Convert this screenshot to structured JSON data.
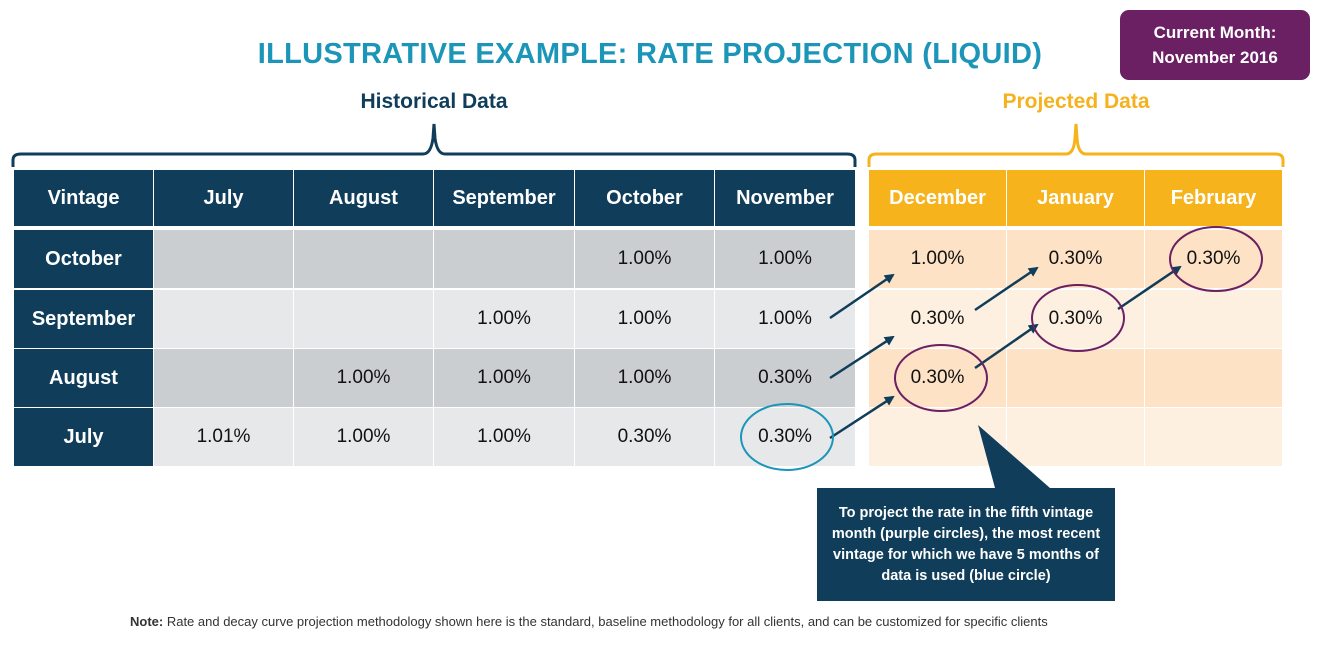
{
  "title": "ILLUSTRATIVE EXAMPLE: RATE PROJECTION (LIQUID)",
  "badge": {
    "line1": "Current Month:",
    "line2": "November 2016"
  },
  "historical_label": "Historical Data",
  "projected_label": "Projected Data",
  "table": {
    "corner": "Vintage",
    "historical_months": [
      "July",
      "August",
      "September",
      "October",
      "November"
    ],
    "projected_months": [
      "December",
      "January",
      "February"
    ],
    "rows": [
      {
        "vintage": "October",
        "historical": [
          "",
          "",
          "",
          "1.00%",
          "1.00%"
        ],
        "projected": [
          "1.00%",
          "0.30%",
          "0.30%"
        ]
      },
      {
        "vintage": "September",
        "historical": [
          "",
          "",
          "1.00%",
          "1.00%",
          "1.00%"
        ],
        "projected": [
          "0.30%",
          "0.30%",
          ""
        ]
      },
      {
        "vintage": "August",
        "historical": [
          "",
          "1.00%",
          "1.00%",
          "1.00%",
          "0.30%"
        ],
        "projected": [
          "0.30%",
          "",
          ""
        ]
      },
      {
        "vintage": "July",
        "historical": [
          "1.01%",
          "1.00%",
          "1.00%",
          "0.30%",
          "0.30%"
        ],
        "projected": [
          "",
          "",
          ""
        ]
      }
    ]
  },
  "colors": {
    "navy": "#0f3d5a",
    "gold": "#f6b31c",
    "purple_circle": "#6b2063",
    "blue_circle": "#1b95b8"
  },
  "callout": "To project the rate in the fifth vintage month (purple circles), the most recent vintage for which we have 5 months of data is used (blue circle)",
  "note": {
    "label": "Note:",
    "text": " Rate and decay curve projection methodology shown here is the standard, baseline methodology for all clients, and can be customized for specific clients"
  }
}
